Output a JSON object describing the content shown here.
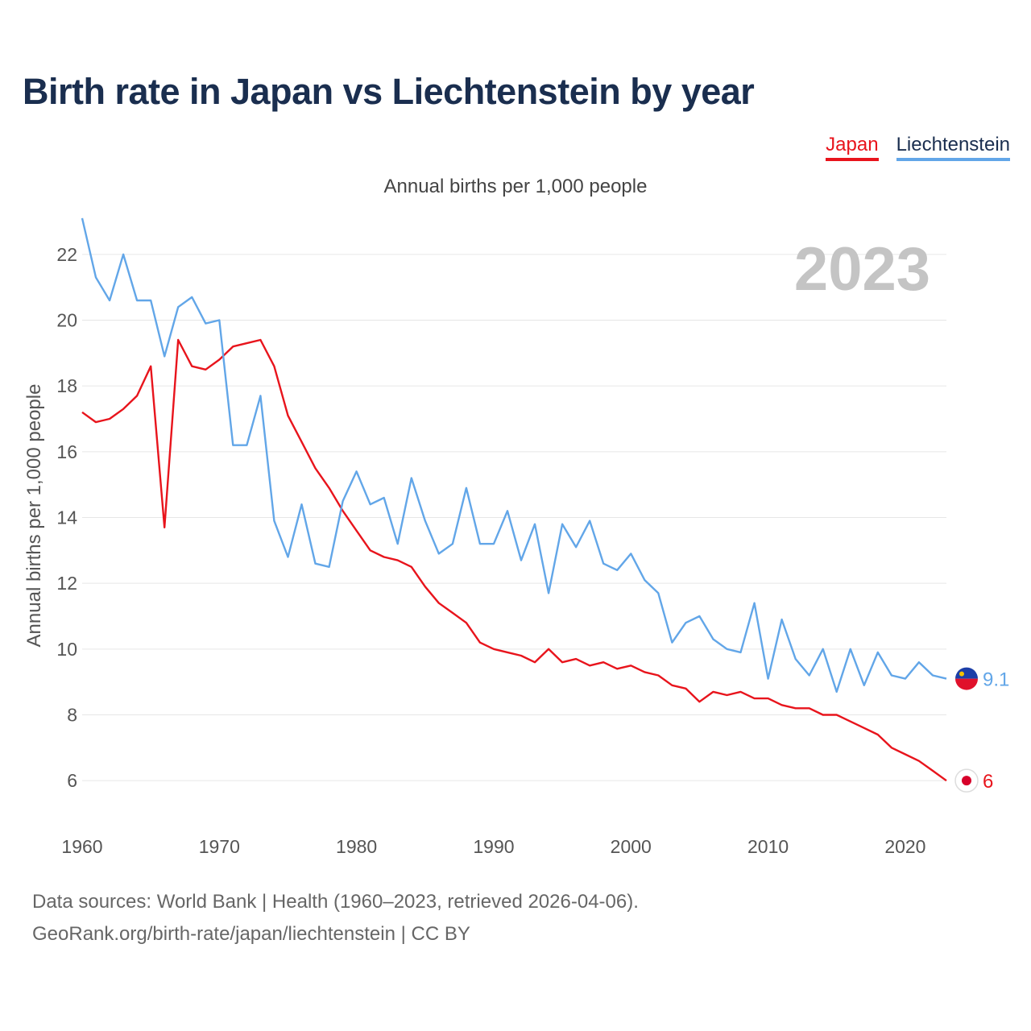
{
  "title": "Birth rate in Japan vs Liechtenstein by year",
  "subtitle": "Annual births per 1,000 people",
  "legend": [
    {
      "label": "Japan",
      "color": "#e8141c"
    },
    {
      "label": "Liechtenstein",
      "color": "#62a6e8"
    }
  ],
  "footer": {
    "line1": "Data sources: World Bank | Health (1960–2023, retrieved 2026-04-06).",
    "line2": "GeoRank.org/birth-rate/japan/liechtenstein | CC BY"
  },
  "chart_data": {
    "type": "line",
    "title": "Birth rate in Japan vs Liechtenstein by year",
    "xlabel": "",
    "ylabel": "Annual births per 1,000 people",
    "xlim": [
      1960,
      2023
    ],
    "ylim": [
      5,
      23
    ],
    "xticks": [
      1960,
      1970,
      1980,
      1990,
      2000,
      2010,
      2020
    ],
    "yticks": [
      6,
      8,
      10,
      12,
      14,
      16,
      18,
      20,
      22
    ],
    "grid": true,
    "current_year": "2023",
    "x": [
      1960,
      1961,
      1962,
      1963,
      1964,
      1965,
      1966,
      1967,
      1968,
      1969,
      1970,
      1971,
      1972,
      1973,
      1974,
      1975,
      1976,
      1977,
      1978,
      1979,
      1980,
      1981,
      1982,
      1983,
      1984,
      1985,
      1986,
      1987,
      1988,
      1989,
      1990,
      1991,
      1992,
      1993,
      1994,
      1995,
      1996,
      1997,
      1998,
      1999,
      2000,
      2001,
      2002,
      2003,
      2004,
      2005,
      2006,
      2007,
      2008,
      2009,
      2010,
      2011,
      2012,
      2013,
      2014,
      2015,
      2016,
      2017,
      2018,
      2019,
      2020,
      2021,
      2022,
      2023
    ],
    "series": [
      {
        "name": "Japan",
        "color": "#e8141c",
        "end_label": "6",
        "values": [
          17.2,
          16.9,
          17.0,
          17.3,
          17.7,
          18.6,
          13.7,
          19.4,
          18.6,
          18.5,
          18.8,
          19.2,
          19.3,
          19.4,
          18.6,
          17.1,
          16.3,
          15.5,
          14.9,
          14.2,
          13.6,
          13.0,
          12.8,
          12.7,
          12.5,
          11.9,
          11.4,
          11.1,
          10.8,
          10.2,
          10.0,
          9.9,
          9.8,
          9.6,
          10.0,
          9.6,
          9.7,
          9.5,
          9.6,
          9.4,
          9.5,
          9.3,
          9.2,
          8.9,
          8.8,
          8.4,
          8.7,
          8.6,
          8.7,
          8.5,
          8.5,
          8.3,
          8.2,
          8.2,
          8.0,
          8.0,
          7.8,
          7.6,
          7.4,
          7.0,
          6.8,
          6.6,
          6.3,
          6.0
        ]
      },
      {
        "name": "Liechtenstein",
        "color": "#62a6e8",
        "end_label": "9.1",
        "values": [
          23.1,
          21.3,
          20.6,
          22.0,
          20.6,
          20.6,
          18.9,
          20.4,
          20.7,
          19.9,
          20.0,
          16.2,
          16.2,
          17.7,
          13.9,
          12.8,
          14.4,
          12.6,
          12.5,
          14.5,
          15.4,
          14.4,
          14.6,
          13.2,
          15.2,
          13.9,
          12.9,
          13.2,
          14.9,
          13.2,
          13.2,
          14.2,
          12.7,
          13.8,
          11.7,
          13.8,
          13.1,
          13.9,
          12.6,
          12.4,
          12.9,
          12.1,
          11.7,
          10.2,
          10.8,
          11.0,
          10.3,
          10.0,
          9.9,
          11.4,
          9.1,
          10.9,
          9.7,
          9.2,
          10.0,
          8.7,
          10.0,
          8.9,
          9.9,
          9.2,
          9.1,
          9.6,
          9.2,
          9.1
        ]
      }
    ]
  }
}
